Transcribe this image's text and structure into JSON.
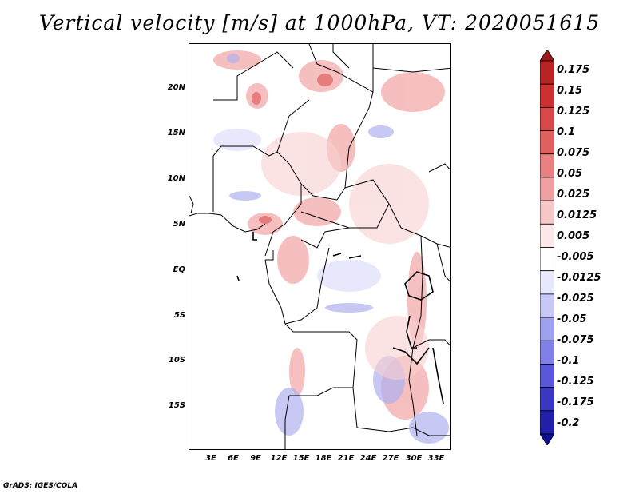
{
  "title": "Vertical velocity [m/s] at 1000hPa, VT: 2020051615",
  "y_axis": [
    "20N",
    "15N",
    "10N",
    "5N",
    "EQ",
    "5S",
    "10S",
    "15S"
  ],
  "x_axis": [
    "3E",
    "6E",
    "9E",
    "12E",
    "15E",
    "18E",
    "21E",
    "24E",
    "27E",
    "30E",
    "33E"
  ],
  "colorbar": {
    "labels": [
      "0.175",
      "0.15",
      "0.125",
      "0.1",
      "0.075",
      "0.05",
      "0.025",
      "0.0125",
      "0.005",
      "-0.005",
      "-0.0125",
      "-0.025",
      "-0.05",
      "-0.075",
      "-0.1",
      "-0.125",
      "-0.175",
      "-0.2"
    ],
    "colors": [
      "#a01818",
      "#b82424",
      "#cc3030",
      "#d84848",
      "#e06060",
      "#e88080",
      "#f0a0a0",
      "#f8c8c8",
      "#fce8e8",
      "#ffffff",
      "#e8e8fc",
      "#c8c8f8",
      "#a0a0f0",
      "#8080e8",
      "#5858d8",
      "#3838c0",
      "#2020a8",
      "#101090"
    ]
  },
  "footer": "GrADS: IGES/COLA"
}
